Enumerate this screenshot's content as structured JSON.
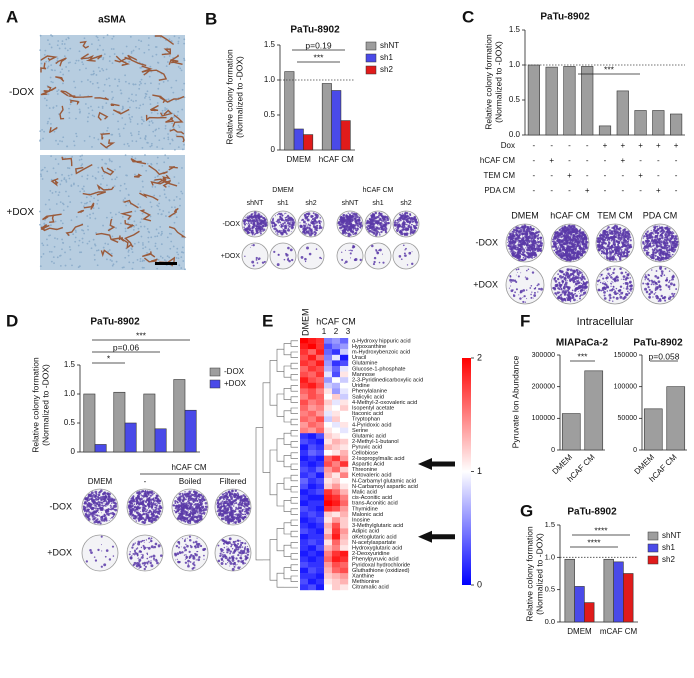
{
  "panel_labels": [
    "A",
    "B",
    "C",
    "D",
    "E",
    "F",
    "G"
  ],
  "panel_a": {
    "title": "aSMA",
    "rows": [
      "-DOX",
      "+DOX"
    ]
  },
  "dishes_b": {
    "groups": [
      "DMEM",
      "hCAF CM"
    ],
    "columns": [
      "shNT",
      "sh1",
      "sh2",
      "shNT",
      "sh1",
      "sh2"
    ],
    "rows": [
      "-DOX",
      "+DOX"
    ]
  },
  "dishes_c": {
    "columns": [
      "DMEM",
      "hCAF CM",
      "TEM CM",
      "PDA CM"
    ],
    "rows": [
      "-DOX",
      "+DOX"
    ]
  },
  "dishes_d": {
    "rows": [
      "-DOX",
      "+DOX"
    ]
  },
  "panel_f_title": "Intracellular",
  "chart_data": [
    {
      "type": "bar",
      "title": "PaTu-8902",
      "ylabel": [
        "Relative colony formation",
        "(Normalized to -DOX)"
      ],
      "categories": [
        "DMEM",
        "hCAF CM"
      ],
      "series": [
        {
          "name": "shNT",
          "color": "#9e9e9e",
          "values": [
            1.12,
            0.95
          ]
        },
        {
          "name": "sh1",
          "color": "#4a4ae8",
          "values": [
            0.3,
            0.85
          ]
        },
        {
          "name": "sh2",
          "color": "#e01b1b",
          "values": [
            0.22,
            0.42
          ]
        }
      ],
      "ylim": [
        0,
        1.5
      ],
      "yticks": [
        0,
        0.5,
        {
          "value": 1,
          "label": "1.0"
        },
        1.5
      ],
      "hline": 1,
      "annotations": [
        "p=0.19",
        "***"
      ]
    },
    {
      "type": "bar",
      "title": "PaTu-8902",
      "ylabel": [
        "Relative colony formation",
        "(Normalized to -DOX)"
      ],
      "values": [
        1.0,
        0.97,
        0.98,
        0.98,
        0.13,
        0.63,
        0.35,
        0.35,
        0.3
      ],
      "color": "#9e9e9e",
      "ylim": [
        0,
        1.5
      ],
      "yticks": [
        {
          "value": 0,
          "label": "0.0"
        },
        0.5,
        {
          "value": 1,
          "label": "1.0"
        },
        1.5
      ],
      "hline": 1,
      "annotations": [
        "***"
      ],
      "conditions": {
        "rows": [
          "Dox",
          "hCAF CM",
          "TEM CM",
          "PDA CM"
        ],
        "cells": [
          [
            "-",
            "-",
            "-",
            "-",
            "+",
            "+",
            "+",
            "+",
            "+"
          ],
          [
            "-",
            "+",
            "-",
            "-",
            "-",
            "+",
            "-",
            "-",
            "-"
          ],
          [
            "-",
            "-",
            "+",
            "-",
            "-",
            "-",
            "+",
            "-",
            "-"
          ],
          [
            "-",
            "-",
            "-",
            "+",
            "-",
            "-",
            "-",
            "+",
            "-"
          ]
        ]
      }
    },
    {
      "type": "bar",
      "title": "PaTu-8902",
      "ylabel": [
        "Relative colony formation",
        "(Normalized to -DOX)"
      ],
      "categories": [
        "DMEM",
        "-",
        "Boiled",
        "Filtered"
      ],
      "group_label": "hCAF CM",
      "series": [
        {
          "name": "-DOX",
          "color": "#9e9e9e",
          "values": [
            1.0,
            1.03,
            1.0,
            1.25
          ]
        },
        {
          "name": "+DOX",
          "color": "#4a4ae8",
          "values": [
            0.13,
            0.5,
            0.4,
            0.72
          ]
        }
      ],
      "ylim": [
        0,
        1.5
      ],
      "yticks": [
        0,
        0.5,
        {
          "value": 1,
          "label": "1.0"
        },
        1.5
      ],
      "annotations": [
        "***",
        "p=0.06",
        "*"
      ]
    },
    {
      "type": "heatmap",
      "column_groups": [
        "DMEM",
        "hCAF CM"
      ],
      "columns": [
        null,
        null,
        null,
        "1",
        "2",
        "3"
      ],
      "colors": [
        "#0000ff",
        "#ffffff",
        "#ff0000"
      ],
      "zlim": [
        0,
        2
      ],
      "zticks": [
        0,
        1,
        2
      ],
      "rows": [
        "α-Hydroxy hippuric acid",
        "Hypoxanthine",
        "m-Hydroxybenzoic acid",
        "Uracil",
        "Glutamine",
        "Glucose-1-phosphate",
        "Mannose",
        "2-3-Pyridinedicarboxylic acid",
        "Uridine",
        "Phenylalanine",
        "Salicylic acid",
        "4-Methyl-2-oxovaleric acid",
        "Isopentyl acetate",
        "Itaconic acid",
        "Tryptophan",
        "4-Pyridoxic acid",
        "Serine",
        "Glutamic acid",
        "2-Methyl-1-butanol",
        "Pyruvic acid",
        "Cellobiose",
        "2-Isopropylmalic acid",
        "Aspartic Acid",
        "Threonine",
        "Ketovaleric acid",
        "N-Carbamyl glutamic acid",
        "N-Carbamoyl aspartic acid",
        "Malic acid",
        "cis-Aconitic acid",
        "trans-Aconitic acid",
        "Thymidine",
        "Malonic acid",
        "Inosine",
        "3-Methylglutaric acid",
        "Adipic acid",
        "αKetoglutaric acid",
        "N-acetylaspartate",
        "Hydroxyglutaric acid",
        "2-Deoxyuridine",
        "Phenylpyruvic acid",
        "Pyridoxal hydrochloride",
        "Gluthathione (oxidized)",
        "Xanthine",
        "Methionine",
        "Citramalic acid"
      ],
      "values": [
        [
          2,
          1.9,
          1.8,
          0.5,
          0.6,
          0.4
        ],
        [
          1.9,
          2,
          1.8,
          0.3,
          0.5,
          0.6
        ],
        [
          1.8,
          1.6,
          1.9,
          0.4,
          0.2,
          0.8
        ],
        [
          1.7,
          1.9,
          1.6,
          0.5,
          0.9,
          0.1
        ],
        [
          1.8,
          1.7,
          1.9,
          0.6,
          0.2,
          0.3
        ],
        [
          1.6,
          1.8,
          1.7,
          0.7,
          0.4,
          0.9
        ],
        [
          1.7,
          1.6,
          1.8,
          0.9,
          0.3,
          1.1
        ],
        [
          1.9,
          1.7,
          1.6,
          0.6,
          1.0,
          0.8
        ],
        [
          1.8,
          1.9,
          1.7,
          0.8,
          0.7,
          1.0
        ],
        [
          1.6,
          1.7,
          1.5,
          1.1,
          0.6,
          0.9
        ],
        [
          1.5,
          1.7,
          1.6,
          1.0,
          1.2,
          0.8
        ],
        [
          1.7,
          1.5,
          1.6,
          1.2,
          0.9,
          1.1
        ],
        [
          1.6,
          1.4,
          1.5,
          1.1,
          1.0,
          1.2
        ],
        [
          1.5,
          1.6,
          1.4,
          0.9,
          1.1,
          1.0
        ],
        [
          1.6,
          1.5,
          1.7,
          0.8,
          1.2,
          1.0
        ],
        [
          1.4,
          1.6,
          1.5,
          1.0,
          0.9,
          1.1
        ],
        [
          1.5,
          1.4,
          1.6,
          1.1,
          1.0,
          0.9
        ],
        [
          0.2,
          0.1,
          0.3,
          1.2,
          1.1,
          1.0
        ],
        [
          0.3,
          0.2,
          0.1,
          1.1,
          1.3,
          1.2
        ],
        [
          0.1,
          0.3,
          0.2,
          1.3,
          1.2,
          1.1
        ],
        [
          0.2,
          0.4,
          0.3,
          1.0,
          1.1,
          1.3
        ],
        [
          0.1,
          0.2,
          0.1,
          1.6,
          1.8,
          1.4
        ],
        [
          0.2,
          0.1,
          0.2,
          1.7,
          1.5,
          1.8
        ],
        [
          0.3,
          0.2,
          0.4,
          1.4,
          1.6,
          1.2
        ],
        [
          0.2,
          0.3,
          0.1,
          1.3,
          1.1,
          1.5
        ],
        [
          0.4,
          0.2,
          0.3,
          1.1,
          1.2,
          1.0
        ],
        [
          0.3,
          0.1,
          0.2,
          1.2,
          1.4,
          1.1
        ],
        [
          0.1,
          0.2,
          0.3,
          1.8,
          1.6,
          1.3
        ],
        [
          0.2,
          0.1,
          0.1,
          1.9,
          1.8,
          1.5
        ],
        [
          0.1,
          0.2,
          0.2,
          2,
          1.9,
          1.6
        ],
        [
          0.3,
          0.2,
          0.1,
          1.8,
          1.7,
          1.4
        ],
        [
          0.2,
          0.3,
          0.2,
          1.2,
          1.1,
          1.3
        ],
        [
          0.1,
          0.2,
          0.3,
          1.1,
          1.4,
          1.2
        ],
        [
          0.2,
          0.1,
          0.2,
          1.3,
          1.7,
          1.2
        ],
        [
          0.3,
          0.2,
          0.1,
          1.2,
          1.8,
          1.4
        ],
        [
          0.1,
          0.2,
          0.2,
          1.4,
          1.9,
          1.3
        ],
        [
          0.2,
          0.3,
          0.2,
          1.1,
          1.6,
          1.2
        ],
        [
          0.2,
          0.1,
          0.3,
          1.3,
          1.5,
          1.1
        ],
        [
          0.1,
          0.2,
          0.1,
          1.5,
          1.8,
          1.9
        ],
        [
          0.2,
          0.1,
          0.2,
          1.6,
          1.9,
          1.8
        ],
        [
          0.3,
          0.2,
          0.2,
          1.4,
          1.7,
          1.6
        ],
        [
          0.1,
          0.3,
          0.2,
          1.3,
          1.6,
          1.7
        ],
        [
          0.2,
          0.2,
          0.1,
          1.2,
          1.3,
          1.4
        ],
        [
          0.3,
          0.1,
          0.2,
          1.1,
          1.2,
          1.3
        ],
        [
          0.2,
          0.3,
          0.1,
          1.0,
          1.2,
          1.1
        ]
      ]
    },
    {
      "type": "bar",
      "title": "MIAPaCa-2",
      "ylabel": "Pyruvate Ion Abundance",
      "categories": [
        "DMEM",
        "hCAF CM"
      ],
      "values": [
        115000,
        250000
      ],
      "color": "#9e9e9e",
      "ylim": [
        0,
        300000
      ],
      "yticks": [
        0,
        100000,
        200000,
        300000
      ],
      "annotations": [
        "***"
      ]
    },
    {
      "type": "bar",
      "title": "PaTu-8902",
      "categories": [
        "DMEM",
        "hCAF CM"
      ],
      "values": [
        65000,
        100000
      ],
      "color": "#9e9e9e",
      "ylim": [
        0,
        150000
      ],
      "yticks": [
        0,
        50000,
        100000,
        150000
      ],
      "annotations": [
        "p=0.058"
      ]
    },
    {
      "type": "bar",
      "title": "PaTu-8902",
      "ylabel": [
        "Relative colony formation",
        "(Normalized to -DOX)"
      ],
      "categories": [
        "DMEM",
        "mCAF CM"
      ],
      "series": [
        {
          "name": "shNT",
          "color": "#9e9e9e",
          "values": [
            0.97,
            0.97
          ]
        },
        {
          "name": "sh1",
          "color": "#4a4ae8",
          "values": [
            0.55,
            0.93
          ]
        },
        {
          "name": "sh2",
          "color": "#e01b1b",
          "values": [
            0.3,
            0.75
          ]
        }
      ],
      "ylim": [
        0,
        1.5
      ],
      "yticks": [
        {
          "value": 0,
          "label": "0.0"
        },
        0.5,
        {
          "value": 1,
          "label": "1.0"
        },
        1.5
      ],
      "hline": 1,
      "annotations": [
        "****",
        "****"
      ]
    }
  ]
}
